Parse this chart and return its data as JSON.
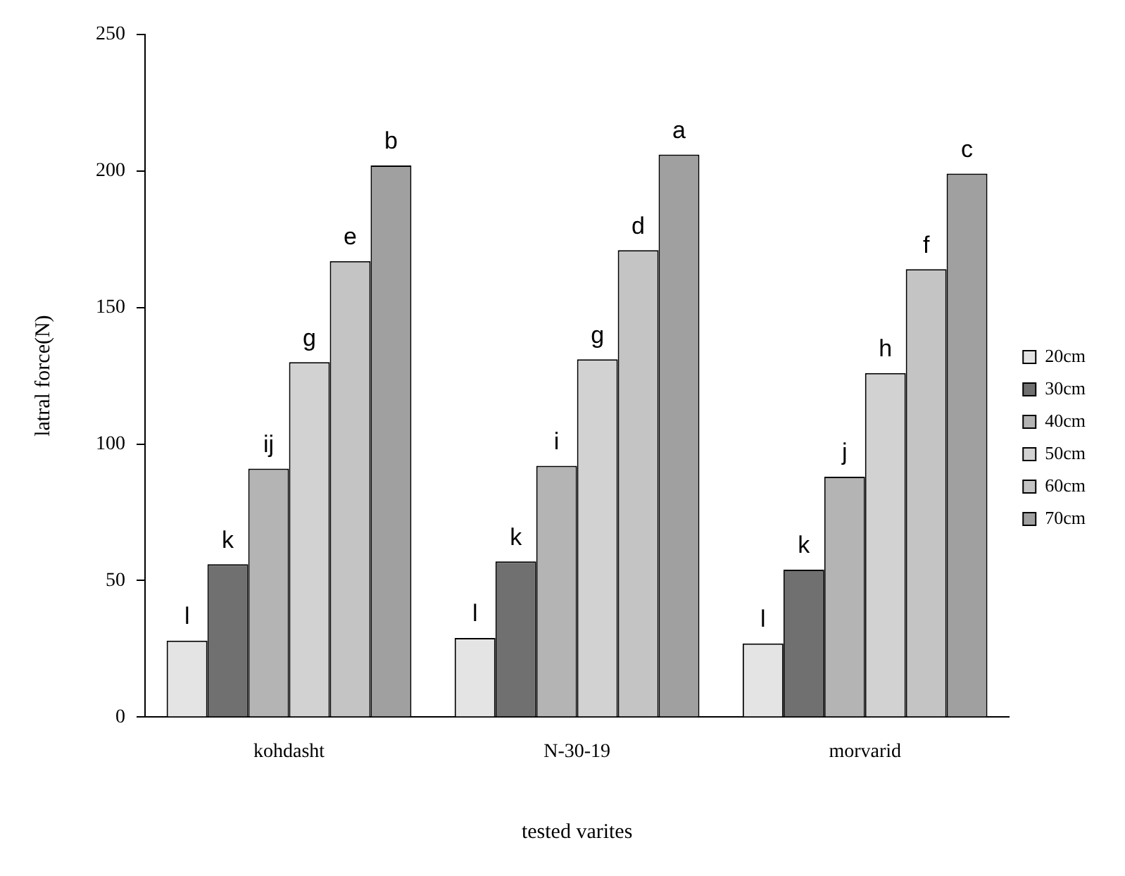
{
  "chart_data": {
    "type": "bar",
    "xlabel": "tested varites",
    "ylabel": "latral force(N)",
    "categories": [
      "kohdasht",
      "N-30-19",
      "morvarid"
    ],
    "ylim": [
      0,
      250
    ],
    "yticks": [
      0,
      50,
      100,
      150,
      200,
      250
    ],
    "grid": false,
    "legend": "right",
    "series": [
      {
        "name": "20cm",
        "color": "#e4e4e4",
        "values": [
          28,
          29,
          27
        ],
        "value_labels": [
          "l",
          "l",
          "l"
        ]
      },
      {
        "name": "30cm",
        "color": "#707070",
        "values": [
          56,
          57,
          54
        ],
        "value_labels": [
          "k",
          "k",
          "k"
        ]
      },
      {
        "name": "40cm",
        "color": "#b4b4b4",
        "values": [
          91,
          92,
          88
        ],
        "value_labels": [
          "ij",
          "i",
          "j"
        ]
      },
      {
        "name": "50cm",
        "color": "#d2d2d2",
        "values": [
          130,
          131,
          126
        ],
        "value_labels": [
          "g",
          "g",
          "h"
        ]
      },
      {
        "name": "60cm",
        "color": "#c4c4c4",
        "values": [
          167,
          171,
          164
        ],
        "value_labels": [
          "e",
          "d",
          "f"
        ]
      },
      {
        "name": "70cm",
        "color": "#a0a0a0",
        "values": [
          202,
          206,
          199
        ],
        "value_labels": [
          "b",
          "a",
          "c"
        ]
      }
    ]
  }
}
